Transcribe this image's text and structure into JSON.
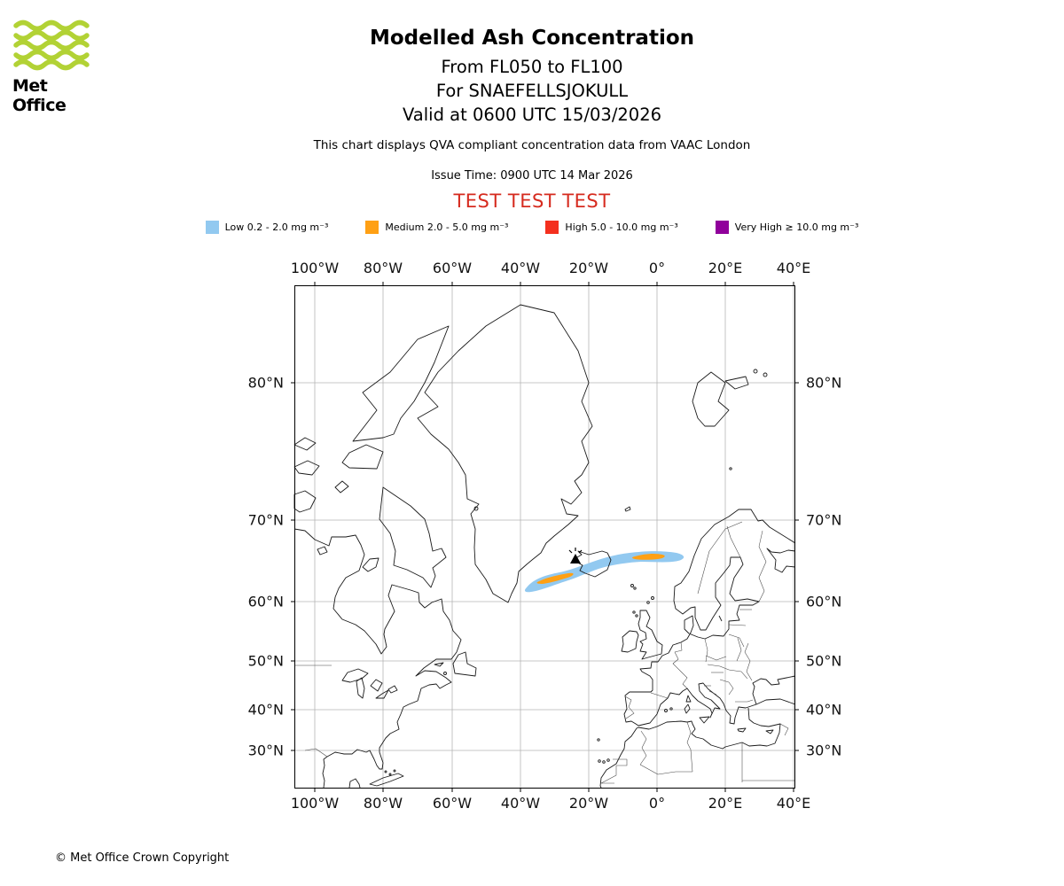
{
  "header": {
    "logo_text": "Met Office",
    "title": "Modelled Ash Concentration",
    "subtitle_fl": "From FL050 to FL100",
    "subtitle_volcano": "For SNAEFELLSJOKULL",
    "subtitle_valid": "Valid at 0600 UTC 15/03/2026",
    "description": "This chart displays QVA compliant concentration data from VAAC London",
    "issue_time": "Issue Time: 0900 UTC 14 Mar 2026",
    "test_banner": "TEST TEST TEST",
    "test_banner_color": "#d62b1f",
    "logo_wave_color": "#B2D235"
  },
  "legend": {
    "items": [
      {
        "label": "Low 0.2 - 2.0 mg m⁻³",
        "color": "#92C9F0"
      },
      {
        "label": "Medium 2.0 - 5.0 mg m⁻³",
        "color": "#FFA014"
      },
      {
        "label": "High 5.0 - 10.0 mg m⁻³",
        "color": "#F4301E"
      },
      {
        "label": "Very High ≥ 10.0 mg m⁻³",
        "color": "#90009B"
      }
    ]
  },
  "map": {
    "x_ticks": [
      "100°W",
      "80°W",
      "60°W",
      "40°W",
      "20°W",
      "0°",
      "20°E",
      "40°E"
    ],
    "y_ticks": [
      "80°N",
      "70°N",
      "60°N",
      "50°N",
      "40°N",
      "30°N"
    ]
  },
  "footer": {
    "copyright": "© Met Office Crown Copyright"
  },
  "chart_data": {
    "type": "map",
    "subtype": "volcanic-ash-concentration-contours",
    "projection": "mercator",
    "title": "Modelled Ash Concentration",
    "flight_level_range": "FL050 - FL100",
    "volcano": {
      "name": "SNAEFELLSJOKULL",
      "approx_lon_deg": -23.8,
      "approx_lat_deg": 64.8,
      "marker": "black volcano symbol"
    },
    "valid_time": "0600 UTC 15/03/2026",
    "issue_time": "0900 UTC 14 Mar 2026",
    "source_note": "QVA compliant concentration data from VAAC London",
    "x_axis": {
      "ticks": [
        "100°W",
        "80°W",
        "60°W",
        "40°W",
        "20°W",
        "0°",
        "20°E",
        "40°E"
      ],
      "range_deg": [
        -106,
        40.5
      ]
    },
    "y_axis": {
      "ticks": [
        "80°N",
        "70°N",
        "60°N",
        "50°N",
        "40°N",
        "30°N"
      ],
      "range_deg": [
        20,
        84
      ]
    },
    "grid": true,
    "region": "North Atlantic: eastern North America, Greenland, Iceland, Europe, North Africa",
    "bands": [
      {
        "name": "Low",
        "range_mg_m3": [
          0.2,
          2.0
        ],
        "color": "#92C9F0",
        "visible_on_map": true,
        "plume_outline_lonlat": [
          [
            -38,
            61.5
          ],
          [
            -33,
            63
          ],
          [
            -28,
            64
          ],
          [
            -24,
            64.8
          ],
          [
            -19,
            65.5
          ],
          [
            -13,
            66
          ],
          [
            -6,
            66.3
          ],
          [
            1,
            66.4
          ],
          [
            6,
            66
          ],
          [
            7.5,
            65.6
          ],
          [
            2,
            65.2
          ],
          [
            -5,
            65
          ],
          [
            -12,
            64.6
          ],
          [
            -18,
            64
          ],
          [
            -24,
            63
          ],
          [
            -30,
            62
          ],
          [
            -35,
            61
          ],
          [
            -37.5,
            60.8
          ]
        ]
      },
      {
        "name": "Medium",
        "range_mg_m3": [
          2.0,
          5.0
        ],
        "color": "#FFA014",
        "visible_on_map": true,
        "patches_lonlat_center": [
          [
            -30.5,
            63.8
          ],
          [
            -3.5,
            65.9
          ]
        ]
      },
      {
        "name": "High",
        "range_mg_m3": [
          5.0,
          10.0
        ],
        "color": "#F4301E",
        "visible_on_map": false
      },
      {
        "name": "Very High",
        "range_mg_m3": [
          10.0,
          null
        ],
        "color": "#90009B",
        "visible_on_map": false
      }
    ]
  }
}
